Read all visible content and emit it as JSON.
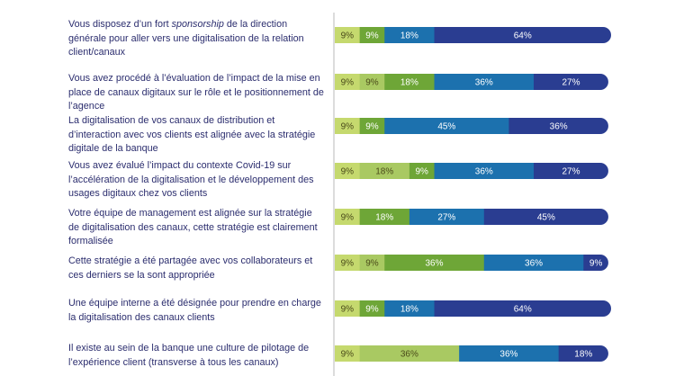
{
  "colors": {
    "c1": "#c5d96e",
    "c2": "#a9c962",
    "c3": "#6ea637",
    "c4": "#1c71ae",
    "c5": "#2a3d91",
    "label_dark": "#4a4a1a",
    "label_light": "#ffffff",
    "text": "#2b2d6e",
    "divider": "#b8b8b8"
  },
  "chart_data": {
    "type": "bar",
    "orientation": "horizontal-stacked",
    "unit": "%",
    "grid": false,
    "rows": [
      {
        "label_parts": [
          {
            "text": "Vous disposez d’un fort ",
            "italic": false
          },
          {
            "text": "sponsorship",
            "italic": true
          },
          {
            "text": " de la direction générale pour aller vers une digitalisation de la relation client/canaux",
            "italic": false
          }
        ],
        "segments": [
          {
            "color_key": "c1",
            "value": 9,
            "label": "9%"
          },
          {
            "color_key": "c3",
            "value": 9,
            "label": "9%"
          },
          {
            "color_key": "c4",
            "value": 18,
            "label": "18%"
          },
          {
            "color_key": "c5",
            "value": 64,
            "label": "64%"
          }
        ]
      },
      {
        "label_parts": [
          {
            "text": "Vous avez procédé à l’évaluation de l’impact de la mise en place de canaux digitaux sur le rôle et le positionnement de l’agence",
            "italic": false
          }
        ],
        "segments": [
          {
            "color_key": "c1",
            "value": 9,
            "label": "9%"
          },
          {
            "color_key": "c2",
            "value": 9,
            "label": "9%"
          },
          {
            "color_key": "c3",
            "value": 18,
            "label": "18%"
          },
          {
            "color_key": "c4",
            "value": 36,
            "label": "36%"
          },
          {
            "color_key": "c5",
            "value": 27,
            "label": "27%"
          }
        ]
      },
      {
        "label_parts": [
          {
            "text": "La digitalisation de vos canaux de distribution et d’interaction avec vos clients est alignée avec la stratégie digitale de la banque",
            "italic": false
          }
        ],
        "segments": [
          {
            "color_key": "c1",
            "value": 9,
            "label": "9%"
          },
          {
            "color_key": "c3",
            "value": 9,
            "label": "9%"
          },
          {
            "color_key": "c4",
            "value": 45,
            "label": "45%"
          },
          {
            "color_key": "c5",
            "value": 36,
            "label": "36%"
          }
        ]
      },
      {
        "label_parts": [
          {
            "text": "Vous avez évalué l’impact du contexte Covid-19 sur l’accélération de la digitalisation et le développement des usages digitaux chez vos clients",
            "italic": false
          }
        ],
        "segments": [
          {
            "color_key": "c1",
            "value": 9,
            "label": "9%"
          },
          {
            "color_key": "c2",
            "value": 18,
            "label": "18%"
          },
          {
            "color_key": "c3",
            "value": 9,
            "label": "9%"
          },
          {
            "color_key": "c4",
            "value": 36,
            "label": "36%"
          },
          {
            "color_key": "c5",
            "value": 27,
            "label": "27%"
          }
        ]
      },
      {
        "label_parts": [
          {
            "text": "Votre équipe de management est alignée sur la stratégie de digitalisation des canaux, cette stratégie est clairement formalisée",
            "italic": false
          }
        ],
        "segments": [
          {
            "color_key": "c1",
            "value": 9,
            "label": "9%"
          },
          {
            "color_key": "c3",
            "value": 18,
            "label": "18%"
          },
          {
            "color_key": "c4",
            "value": 27,
            "label": "27%"
          },
          {
            "color_key": "c5",
            "value": 45,
            "label": "45%"
          }
        ]
      },
      {
        "label_parts": [
          {
            "text": "Cette stratégie a été partagée avec vos collaborateurs et ces derniers se la sont appropriée",
            "italic": false
          }
        ],
        "segments": [
          {
            "color_key": "c1",
            "value": 9,
            "label": "9%"
          },
          {
            "color_key": "c2",
            "value": 9,
            "label": "9%"
          },
          {
            "color_key": "c3",
            "value": 36,
            "label": "36%"
          },
          {
            "color_key": "c4",
            "value": 36,
            "label": "36%"
          },
          {
            "color_key": "c5",
            "value": 9,
            "label": "9%"
          }
        ]
      },
      {
        "label_parts": [
          {
            "text": "Une équipe interne a été désignée pour prendre en charge la digitalisation des canaux clients",
            "italic": false
          }
        ],
        "segments": [
          {
            "color_key": "c1",
            "value": 9,
            "label": "9%"
          },
          {
            "color_key": "c3",
            "value": 9,
            "label": "9%"
          },
          {
            "color_key": "c4",
            "value": 18,
            "label": "18%"
          },
          {
            "color_key": "c5",
            "value": 64,
            "label": "64%"
          }
        ]
      },
      {
        "label_parts": [
          {
            "text": "Il existe au sein de la banque une culture de pilotage de l’expérience client (transverse à tous les canaux)",
            "italic": false
          }
        ],
        "segments": [
          {
            "color_key": "c1",
            "value": 9,
            "label": "9%"
          },
          {
            "color_key": "c2",
            "value": 36,
            "label": "36%"
          },
          {
            "color_key": "c4",
            "value": 36,
            "label": "36%"
          },
          {
            "color_key": "c5",
            "value": 18,
            "label": "18%"
          }
        ]
      }
    ]
  }
}
